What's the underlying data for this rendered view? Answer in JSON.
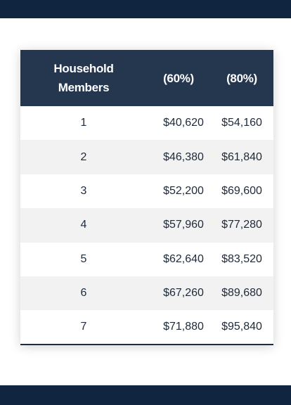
{
  "colors": {
    "bar": "#0f2540",
    "header_bg": "#25364f",
    "row_alt": "#f2f2f2"
  },
  "table": {
    "headers": {
      "members_line1": "Household",
      "members_line2": "Members",
      "col_60": "(60%)",
      "col_80": "(80%)"
    },
    "rows": [
      {
        "members": "1",
        "v60": "$40,620",
        "v80": "$54,160"
      },
      {
        "members": "2",
        "v60": "$46,380",
        "v80": "$61,840"
      },
      {
        "members": "3",
        "v60": "$52,200",
        "v80": "$69,600"
      },
      {
        "members": "4",
        "v60": "$57,960",
        "v80": "$77,280"
      },
      {
        "members": "5",
        "v60": "$62,640",
        "v80": "$83,520"
      },
      {
        "members": "6",
        "v60": "$67,260",
        "v80": "$89,680"
      },
      {
        "members": "7",
        "v60": "$71,880",
        "v80": "$95,840"
      }
    ]
  }
}
